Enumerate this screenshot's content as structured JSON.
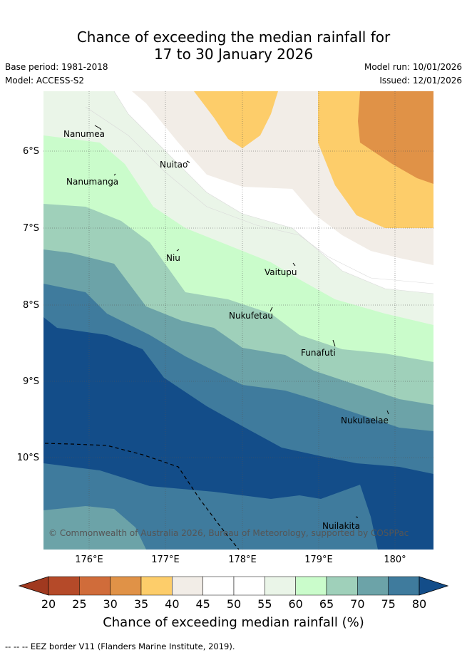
{
  "title": {
    "line1": "Chance of exceeding the median rainfall for",
    "line2": "17 to 30 January 2026"
  },
  "meta": {
    "base_period": "Base period: 1981-2018",
    "model": "Model: ACCESS-S2",
    "model_run": "Model run: 10/01/2026",
    "issued": "Issued: 12/01/2026"
  },
  "map": {
    "lat_labels": [
      "6°S",
      "7°S",
      "8°S",
      "9°S",
      "10°S"
    ],
    "lon_labels": [
      "176°E",
      "177°E",
      "178°E",
      "179°E",
      "180°"
    ],
    "places": [
      "Nanumea",
      "Nuitao",
      "Nanumanga",
      "Niu",
      "Vaitupu",
      "Nukufetau",
      "Funafuti",
      "Nukulaelae",
      "Nuilakita"
    ],
    "copyright": "© Commonwealth of Australia 2026, Bureau of Meteorology, supported by COSPPac"
  },
  "colorbar": {
    "ticks": [
      "20",
      "25",
      "30",
      "35",
      "40",
      "45",
      "50",
      "55",
      "60",
      "65",
      "70",
      "75",
      "80"
    ],
    "colors": [
      "#a0391f",
      "#b54a29",
      "#d06c3a",
      "#e09247",
      "#fdcd6a",
      "#f2ede7",
      "#ffffff",
      "#ffffff",
      "#eaf5e8",
      "#cafccb",
      "#9fd0ba",
      "#6ca3a8",
      "#3f7b9d",
      "#134d89"
    ],
    "label": "Chance of exceeding median rainfall (%)"
  },
  "footer": "-- -- -- EEZ border V11 (Flanders Marine Institute, 2019)."
}
